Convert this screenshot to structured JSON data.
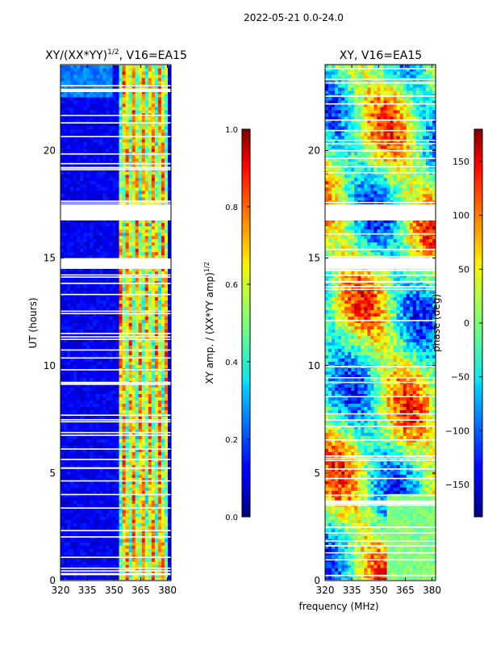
{
  "figure": {
    "suptitle": "2022-05-21 0.0-24.0"
  },
  "chart_data": [
    {
      "type": "heatmap",
      "title": "XY/(XX*YY)^{1/2}, V16=EA15",
      "title_main": "XY/(XX*YY)",
      "title_exp": "1/2",
      "title_tail": ", V16=EA15",
      "xlabel": "",
      "ylabel": "UT (hours)",
      "xlim": [
        320,
        382
      ],
      "ylim": [
        0,
        24
      ],
      "xticks": [
        320,
        335,
        350,
        365,
        380
      ],
      "yticks": [
        0,
        5,
        10,
        15,
        20
      ],
      "colorbar": {
        "label": "XY amp. / (XX*YY amp)^{1/2}",
        "label_main": "XY amp. / (XX*YY amp)",
        "label_exp": "1/2",
        "range": [
          0.0,
          1.0
        ],
        "ticks": [
          "0.0",
          "0.2",
          "0.4",
          "0.6",
          "0.8",
          "1.0"
        ],
        "tick_values": [
          0.0,
          0.2,
          0.4,
          0.6,
          0.8,
          1.0
        ]
      },
      "flagged_bands_hours": [
        [
          14.5,
          15.0
        ],
        [
          16.75,
          17.5
        ]
      ]
    },
    {
      "type": "heatmap",
      "title": "XY, V16=EA15",
      "xlabel": "frequency (MHz)",
      "ylabel": "",
      "xlim": [
        320,
        382
      ],
      "ylim": [
        0,
        24
      ],
      "xticks": [
        320,
        335,
        350,
        365,
        380
      ],
      "yticks": [
        0,
        5,
        10,
        15,
        20
      ],
      "colorbar": {
        "label": "phase (deg)",
        "range": [
          -180,
          180
        ],
        "ticks": [
          "−150",
          "−100",
          "−50",
          "0",
          "50",
          "100",
          "150"
        ],
        "tick_values": [
          -150,
          -100,
          -50,
          0,
          50,
          100,
          150
        ]
      },
      "flagged_bands_hours": [
        [
          14.5,
          15.0
        ],
        [
          16.75,
          17.5
        ]
      ]
    }
  ]
}
